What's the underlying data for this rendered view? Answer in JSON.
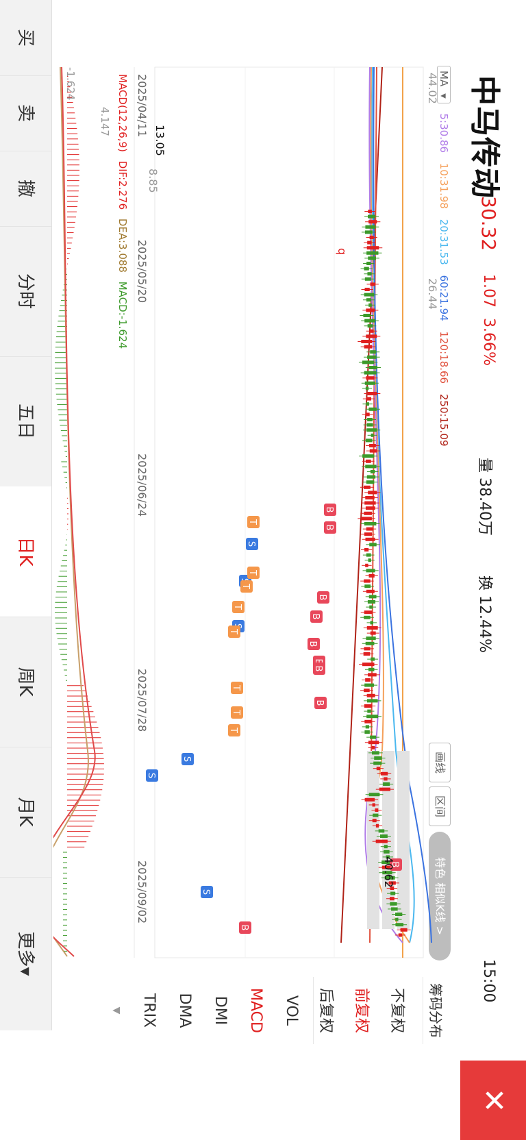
{
  "stock": {
    "name": "中马传动",
    "price": "30.32",
    "change": "1.07",
    "change_pct": "3.66%",
    "volume": "量 38.40万",
    "turnover": "换 12.44%",
    "time": "15:00"
  },
  "ma_legend": {
    "label": "MA",
    "items": [
      {
        "text": "5:30.86",
        "color": "#b07ce8"
      },
      {
        "text": "10:31.98",
        "color": "#f5a05a"
      },
      {
        "text": "20:31.53",
        "color": "#4bb8ef"
      },
      {
        "text": "60:21.94",
        "color": "#3b73e0"
      },
      {
        "text": "120:18.66",
        "color": "#e0523e"
      },
      {
        "text": "250:15.09",
        "color": "#b02318"
      }
    ]
  },
  "tools": {
    "draw_line": "画线",
    "interval": "区间",
    "feature": "特色 相似K线 >"
  },
  "price_axis": {
    "top": "44.02",
    "mid": "26.44",
    "bottom": "8.85",
    "high_label": "40.62",
    "low_label": "13.05"
  },
  "dates": [
    "2025/04/11",
    "2025/05/20",
    "2025/06/24",
    "2025/07/28",
    "2025/09/02"
  ],
  "macd_legend": {
    "title": "MACD(12,26,9)",
    "dif": "DIF:2.276",
    "dea": "DEA:3.088",
    "macd": "MACD:-1.624"
  },
  "macd_axis": {
    "top": "4.147",
    "bottom": "-1.624"
  },
  "side_menu": {
    "chip": "筹码分布",
    "items": [
      "不复权",
      "前复权",
      "后复权",
      "VOL",
      "MACD",
      "DMI",
      "DMA",
      "TRIX"
    ],
    "active": "前复权",
    "active_indicator": "MACD",
    "down_arrow": "▼"
  },
  "tabs": [
    "买",
    "卖",
    "撤",
    "分时",
    "五日",
    "日K",
    "周K",
    "月K",
    "更多▾"
  ],
  "active_tab": "日K",
  "close_icon": "close-icon",
  "markers": {
    "buy": "B",
    "sell": "S",
    "t": "T",
    "q": "q"
  },
  "colors": {
    "up": "#e02020",
    "down": "#3c9a2a",
    "orange_line": "#f2a24a"
  }
}
